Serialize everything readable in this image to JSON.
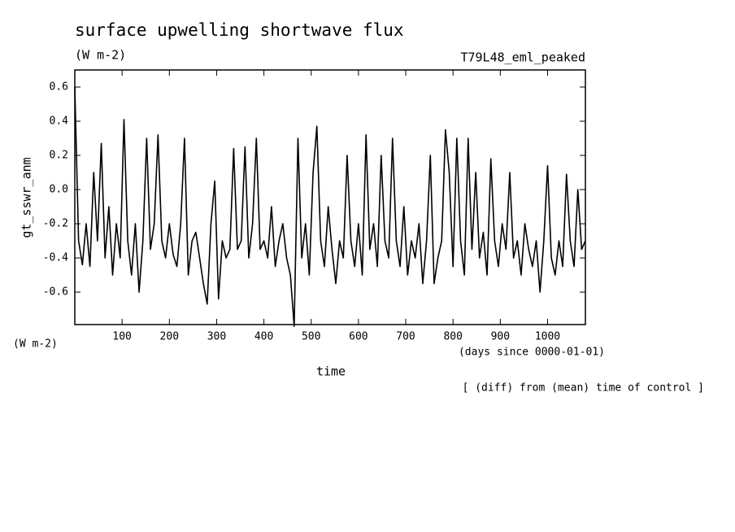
{
  "chart_data": {
    "type": "line",
    "title": "surface upwelling shortwave flux",
    "subtitle": "(W m-2)",
    "experiment": "T79L48_eml_peaked",
    "ylabel": "gt_sswr_anm",
    "y_units": "(W m-2)",
    "x_units": "(days since 0000-01-01)",
    "xlabel": "time",
    "annotation": "[ (diff) from (mean) time of control ]",
    "xlim": [
      0,
      1080
    ],
    "ylim": [
      -0.79,
      0.7
    ],
    "xticks": [
      100,
      200,
      300,
      400,
      500,
      600,
      700,
      800,
      900,
      1000
    ],
    "yticks": [
      -0.6,
      -0.4,
      -0.2,
      {
        "value": 0,
        "label": "0.0"
      },
      0.2,
      0.4,
      0.6
    ],
    "x": [
      0,
      8,
      16,
      24,
      32,
      40,
      48,
      56,
      64,
      72,
      80,
      88,
      96,
      104,
      112,
      120,
      128,
      136,
      144,
      152,
      160,
      168,
      176,
      184,
      192,
      200,
      208,
      216,
      224,
      232,
      240,
      248,
      256,
      264,
      272,
      280,
      288,
      296,
      304,
      312,
      320,
      328,
      336,
      344,
      352,
      360,
      368,
      376,
      384,
      392,
      400,
      408,
      416,
      424,
      432,
      440,
      448,
      456,
      464,
      472,
      480,
      488,
      496,
      504,
      512,
      520,
      528,
      536,
      544,
      552,
      560,
      568,
      576,
      584,
      592,
      600,
      608,
      616,
      624,
      632,
      640,
      648,
      656,
      664,
      672,
      680,
      688,
      696,
      704,
      712,
      720,
      728,
      736,
      744,
      752,
      760,
      768,
      776,
      784,
      792,
      800,
      808,
      816,
      824,
      832,
      840,
      848,
      856,
      864,
      872,
      880,
      888,
      896,
      904,
      912,
      920,
      928,
      936,
      944,
      952,
      960,
      968,
      976,
      984,
      992,
      1000,
      1008,
      1016,
      1024,
      1032,
      1040,
      1048,
      1056,
      1064,
      1072,
      1080
    ],
    "series": [
      {
        "name": "gt_sswr_anm",
        "color": "#000000",
        "values": [
          0.6,
          -0.3,
          -0.44,
          -0.2,
          -0.45,
          0.1,
          -0.3,
          0.27,
          -0.4,
          -0.1,
          -0.5,
          -0.2,
          -0.4,
          0.41,
          -0.3,
          -0.5,
          -0.2,
          -0.6,
          -0.3,
          0.3,
          -0.35,
          -0.2,
          0.32,
          -0.3,
          -0.4,
          -0.2,
          -0.38,
          -0.45,
          -0.2,
          0.3,
          -0.5,
          -0.3,
          -0.25,
          -0.4,
          -0.55,
          -0.67,
          -0.2,
          0.05,
          -0.64,
          -0.3,
          -0.4,
          -0.35,
          0.24,
          -0.35,
          -0.3,
          0.25,
          -0.4,
          -0.2,
          0.3,
          -0.35,
          -0.3,
          -0.4,
          -0.1,
          -0.45,
          -0.3,
          -0.2,
          -0.4,
          -0.5,
          -0.8,
          0.3,
          -0.4,
          -0.2,
          -0.5,
          0.1,
          0.37,
          -0.3,
          -0.45,
          -0.1,
          -0.35,
          -0.55,
          -0.3,
          -0.4,
          0.2,
          -0.3,
          -0.45,
          -0.2,
          -0.5,
          0.32,
          -0.35,
          -0.2,
          -0.45,
          0.2,
          -0.3,
          -0.4,
          0.3,
          -0.3,
          -0.45,
          -0.1,
          -0.5,
          -0.3,
          -0.4,
          -0.2,
          -0.55,
          -0.3,
          0.2,
          -0.55,
          -0.4,
          -0.3,
          0.35,
          0.1,
          -0.45,
          0.3,
          -0.3,
          -0.5,
          0.3,
          -0.35,
          0.1,
          -0.4,
          -0.25,
          -0.5,
          0.18,
          -0.3,
          -0.45,
          -0.2,
          -0.35,
          0.1,
          -0.4,
          -0.3,
          -0.5,
          -0.2,
          -0.35,
          -0.45,
          -0.3,
          -0.6,
          -0.3,
          0.14,
          -0.4,
          -0.5,
          -0.3,
          -0.45,
          0.09,
          -0.3,
          -0.45,
          0.0,
          -0.35,
          -0.3
        ]
      }
    ]
  }
}
